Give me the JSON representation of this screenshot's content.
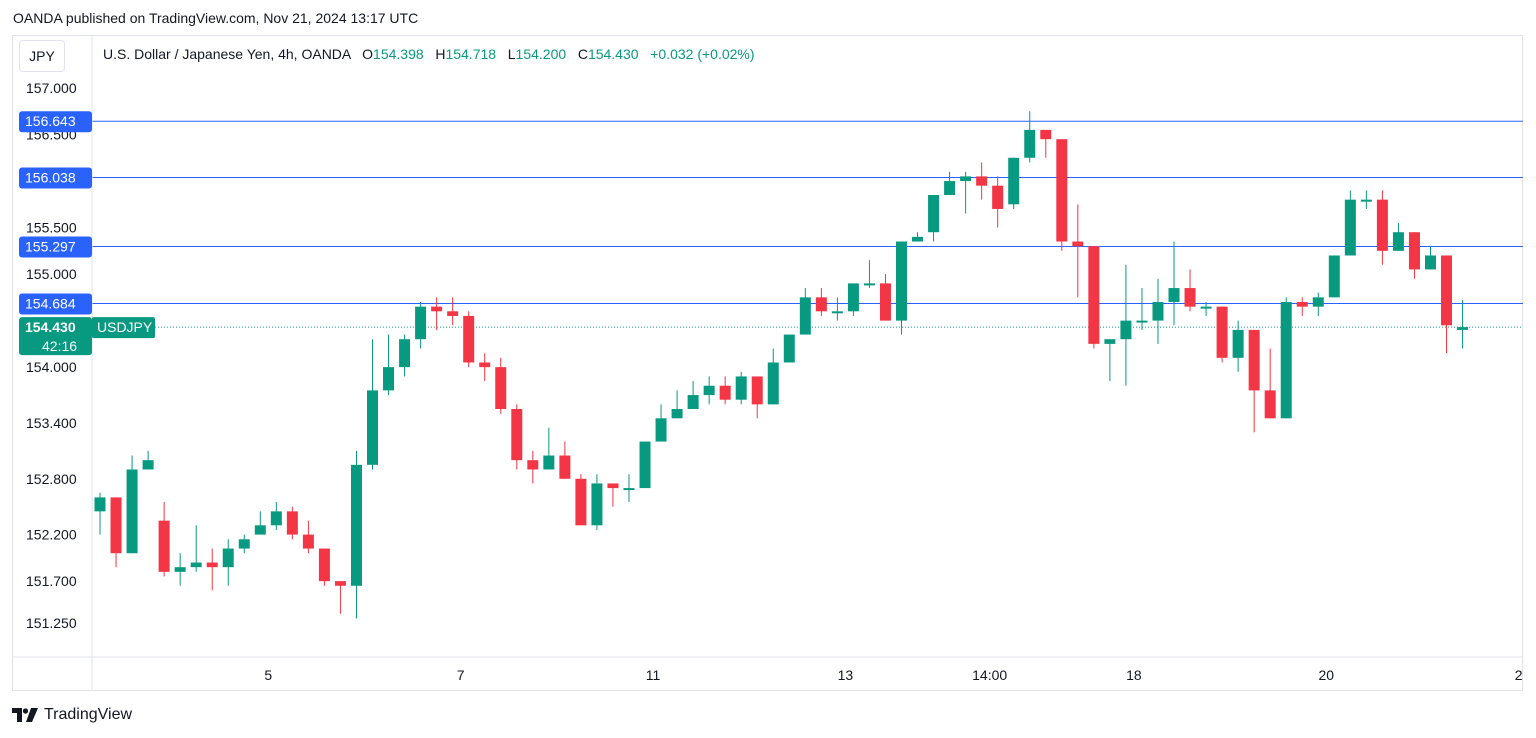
{
  "header": {
    "publisher_line": "OANDA published on TradingView.com, Nov 21, 2024 13:17 UTC"
  },
  "currency_button": {
    "label": "JPY"
  },
  "legend": {
    "symbol": "U.S. Dollar / Japanese Yen, 4h, OANDA",
    "o_label": "O",
    "o_value": "154.398",
    "h_label": "H",
    "h_value": "154.718",
    "l_label": "L",
    "l_value": "154.200",
    "c_label": "C",
    "c_value": "154.430",
    "change": "+0.032 (+0.02%)"
  },
  "brand": {
    "name": "TradingView"
  },
  "colors": {
    "up": "#089981",
    "down": "#f23645",
    "level_line": "#2962ff",
    "level_tag": "#2962ff",
    "current_tag": "#089981"
  },
  "chart_data": {
    "type": "candlestick",
    "symbol": "USDJPY",
    "interval": "4h",
    "y_ticks": [
      151.25,
      151.7,
      152.2,
      152.8,
      153.4,
      154.0,
      155.0,
      155.5,
      156.5,
      157.0
    ],
    "y_tick_labels": [
      "151.250",
      "151.700",
      "152.200",
      "152.800",
      "153.400",
      "154.000",
      "155.000",
      "155.500",
      "156.500",
      "157.000"
    ],
    "x_ticks": [
      {
        "label": "5",
        "index": 10.5
      },
      {
        "label": "7",
        "index": 22.5
      },
      {
        "label": "11",
        "index": 34.5
      },
      {
        "label": "13",
        "index": 46.5
      },
      {
        "label": "14:00",
        "index": 55.5
      },
      {
        "label": "18",
        "index": 64.5
      },
      {
        "label": "20",
        "index": 76.5
      },
      {
        "label": "2",
        "index": 88.5
      }
    ],
    "horizontal_levels": [
      {
        "label": "156.643",
        "value": 156.643
      },
      {
        "label": "156.038",
        "value": 156.038
      },
      {
        "label": "155.297",
        "value": 155.297
      },
      {
        "label": "154.684",
        "value": 154.684
      }
    ],
    "current_price": {
      "label": "154.430",
      "value": 154.43,
      "symbol": "USDJPY",
      "countdown": "42:16"
    },
    "candles": [
      [
        152.45,
        152.6,
        152.2,
        152.65
      ],
      [
        152.6,
        152.0,
        151.85,
        152.6
      ],
      [
        152.0,
        152.9,
        152.0,
        153.05
      ],
      [
        152.9,
        153.0,
        152.9,
        153.1
      ],
      [
        152.35,
        151.8,
        151.75,
        152.55
      ],
      [
        151.8,
        151.85,
        151.65,
        152.0
      ],
      [
        151.85,
        151.9,
        151.8,
        152.3
      ],
      [
        151.9,
        151.85,
        151.6,
        152.05
      ],
      [
        151.85,
        152.05,
        151.65,
        152.15
      ],
      [
        152.05,
        152.15,
        152.0,
        152.2
      ],
      [
        152.2,
        152.3,
        152.2,
        152.45
      ],
      [
        152.3,
        152.45,
        152.25,
        152.55
      ],
      [
        152.45,
        152.2,
        152.15,
        152.5
      ],
      [
        152.2,
        152.05,
        152.0,
        152.35
      ],
      [
        152.05,
        151.7,
        151.65,
        152.05
      ],
      [
        151.7,
        151.65,
        151.35,
        151.7
      ],
      [
        151.65,
        152.95,
        151.3,
        153.1
      ],
      [
        152.95,
        153.75,
        152.9,
        154.3
      ],
      [
        153.75,
        154.0,
        153.7,
        154.35
      ],
      [
        154.0,
        154.3,
        153.9,
        154.35
      ],
      [
        154.3,
        154.65,
        154.2,
        154.7
      ],
      [
        154.65,
        154.6,
        154.4,
        154.75
      ],
      [
        154.6,
        154.55,
        154.45,
        154.75
      ],
      [
        154.55,
        154.05,
        154.0,
        154.6
      ],
      [
        154.05,
        154.0,
        153.85,
        154.15
      ],
      [
        154.0,
        153.55,
        153.5,
        154.1
      ],
      [
        153.55,
        153.0,
        152.9,
        153.6
      ],
      [
        153.0,
        152.9,
        152.75,
        153.1
      ],
      [
        152.9,
        153.05,
        152.9,
        153.35
      ],
      [
        153.05,
        152.8,
        152.8,
        153.2
      ],
      [
        152.8,
        152.3,
        152.3,
        152.85
      ],
      [
        152.3,
        152.75,
        152.25,
        152.85
      ],
      [
        152.75,
        152.7,
        152.5,
        152.75
      ],
      [
        152.7,
        152.7,
        152.55,
        152.85
      ],
      [
        152.7,
        153.2,
        152.7,
        153.2
      ],
      [
        153.2,
        153.45,
        153.2,
        153.6
      ],
      [
        153.45,
        153.55,
        153.45,
        153.75
      ],
      [
        153.55,
        153.7,
        153.55,
        153.85
      ],
      [
        153.7,
        153.8,
        153.6,
        153.9
      ],
      [
        153.8,
        153.65,
        153.6,
        153.9
      ],
      [
        153.65,
        153.9,
        153.6,
        153.95
      ],
      [
        153.9,
        153.6,
        153.45,
        153.9
      ],
      [
        153.6,
        154.05,
        153.6,
        154.2
      ],
      [
        154.05,
        154.35,
        154.05,
        154.35
      ],
      [
        154.35,
        154.75,
        154.35,
        154.85
      ],
      [
        154.75,
        154.6,
        154.55,
        154.85
      ],
      [
        154.6,
        154.6,
        154.5,
        154.75
      ],
      [
        154.6,
        154.9,
        154.55,
        154.9
      ],
      [
        154.9,
        154.9,
        154.85,
        155.15
      ],
      [
        154.9,
        154.5,
        154.5,
        155.0
      ],
      [
        154.5,
        155.35,
        154.35,
        155.35
      ],
      [
        155.35,
        155.4,
        155.35,
        155.45
      ],
      [
        155.45,
        155.85,
        155.35,
        155.85
      ],
      [
        155.85,
        156.0,
        155.85,
        156.1
      ],
      [
        156.0,
        156.05,
        155.65,
        156.1
      ],
      [
        156.05,
        155.95,
        155.8,
        156.2
      ],
      [
        155.95,
        155.7,
        155.5,
        156.05
      ],
      [
        155.75,
        156.25,
        155.7,
        156.25
      ],
      [
        156.25,
        156.55,
        156.2,
        156.75
      ],
      [
        156.55,
        156.45,
        156.25,
        156.55
      ],
      [
        156.45,
        155.35,
        155.25,
        156.45
      ],
      [
        155.35,
        155.3,
        154.75,
        155.75
      ],
      [
        155.3,
        154.25,
        154.2,
        155.3
      ],
      [
        154.25,
        154.3,
        153.85,
        154.3
      ],
      [
        154.3,
        154.5,
        153.8,
        155.1
      ],
      [
        154.5,
        154.5,
        154.4,
        154.85
      ],
      [
        154.5,
        154.7,
        154.25,
        154.95
      ],
      [
        154.7,
        154.85,
        154.45,
        155.35
      ],
      [
        154.85,
        154.65,
        154.6,
        155.05
      ],
      [
        154.65,
        154.65,
        154.55,
        154.7
      ],
      [
        154.65,
        154.1,
        154.05,
        154.65
      ],
      [
        154.1,
        154.4,
        153.95,
        154.5
      ],
      [
        154.4,
        153.75,
        153.3,
        154.4
      ],
      [
        153.75,
        153.45,
        153.45,
        154.2
      ],
      [
        153.45,
        154.7,
        153.45,
        154.75
      ],
      [
        154.7,
        154.65,
        154.55,
        154.75
      ],
      [
        154.65,
        154.75,
        154.55,
        154.8
      ],
      [
        154.75,
        155.2,
        154.75,
        155.2
      ],
      [
        155.2,
        155.8,
        155.2,
        155.9
      ],
      [
        155.8,
        155.8,
        155.7,
        155.9
      ],
      [
        155.8,
        155.25,
        155.1,
        155.9
      ],
      [
        155.25,
        155.45,
        155.25,
        155.55
      ],
      [
        155.45,
        155.05,
        154.95,
        155.45
      ],
      [
        155.05,
        155.2,
        155.05,
        155.3
      ],
      [
        155.2,
        154.45,
        154.15,
        155.2
      ],
      [
        154.4,
        154.43,
        154.2,
        154.72
      ]
    ]
  }
}
